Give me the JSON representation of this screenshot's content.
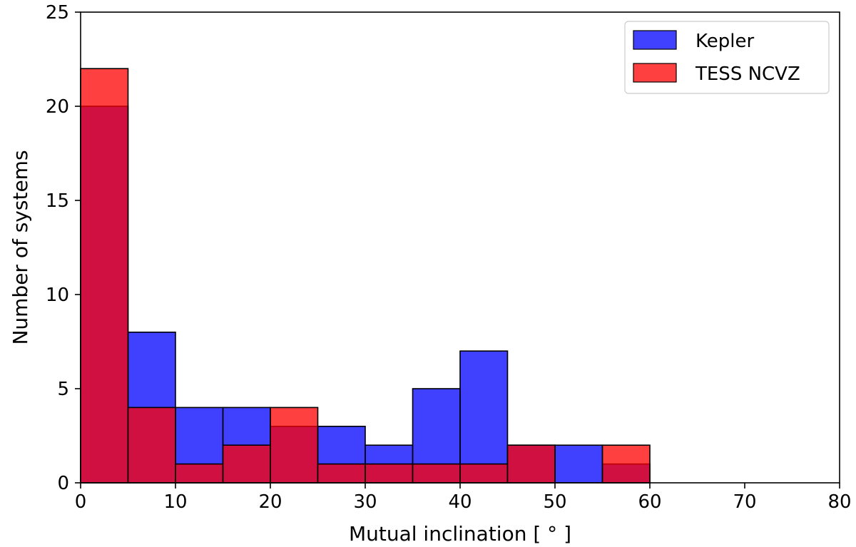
{
  "chart_data": {
    "type": "bar",
    "xlabel": "Mutual inclination [$^\\circ$]",
    "xlabel_display": "Mutual inclination [ ° ]",
    "ylabel": "Number of systems",
    "xlim": [
      0,
      80
    ],
    "ylim": [
      0,
      25
    ],
    "xticks": [
      "0",
      "10",
      "20",
      "30",
      "40",
      "50",
      "60",
      "70",
      "80"
    ],
    "yticks": [
      "0",
      "5",
      "10",
      "15",
      "20",
      "25"
    ],
    "bin_edges": [
      0,
      5,
      10,
      15,
      20,
      25,
      30,
      35,
      40,
      45,
      50,
      55,
      60
    ],
    "grid": false,
    "legend_position": "top-right",
    "series": [
      {
        "name": "Kepler",
        "color": "#0000ff",
        "opacity": 0.75,
        "values": [
          20,
          8,
          4,
          4,
          3,
          3,
          2,
          5,
          7,
          2,
          2,
          1
        ]
      },
      {
        "name": "TESS NCVZ",
        "color": "#ff0000",
        "opacity": 0.75,
        "values": [
          22,
          4,
          1,
          2,
          4,
          1,
          1,
          1,
          1,
          2,
          0,
          2
        ]
      }
    ]
  }
}
